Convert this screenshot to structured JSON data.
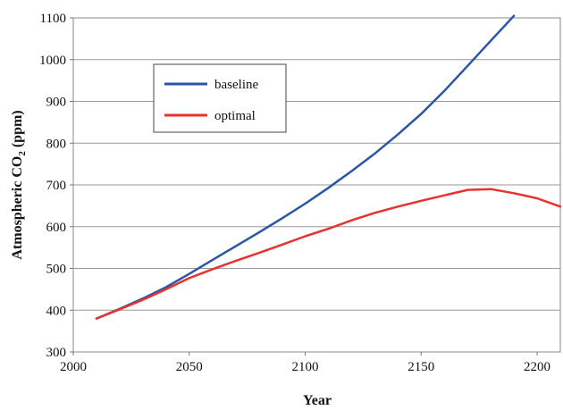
{
  "chart_data": {
    "type": "line",
    "title": "",
    "xlabel": "Year",
    "ylabel_main": "Atmospheric CO",
    "ylabel_sub": "2",
    "ylabel_unit": " (ppm)",
    "xlim": [
      2000,
      2210
    ],
    "ylim": [
      300,
      1100
    ],
    "x_ticks": [
      2000,
      2050,
      2100,
      2150,
      2200
    ],
    "y_ticks": [
      300,
      400,
      500,
      600,
      700,
      800,
      900,
      1000,
      1100
    ],
    "grid": "horizontal",
    "legend_placement": "upper-left",
    "series": [
      {
        "name": "baseline",
        "color": "#2a56a6",
        "x": [
          2010,
          2020,
          2030,
          2040,
          2050,
          2060,
          2070,
          2080,
          2090,
          2100,
          2110,
          2120,
          2130,
          2140,
          2150,
          2160,
          2170,
          2180,
          2190
        ],
        "y": [
          380,
          403,
          428,
          455,
          487,
          520,
          553,
          586,
          620,
          655,
          693,
          733,
          775,
          821,
          870,
          925,
          985,
          1045,
          1105
        ]
      },
      {
        "name": "optimal",
        "color": "#e8322d",
        "x": [
          2010,
          2020,
          2030,
          2040,
          2050,
          2060,
          2070,
          2080,
          2090,
          2100,
          2110,
          2120,
          2130,
          2140,
          2150,
          2160,
          2170,
          2180,
          2190,
          2200,
          2210
        ],
        "y": [
          380,
          402,
          425,
          450,
          477,
          498,
          518,
          537,
          557,
          577,
          595,
          615,
          633,
          648,
          662,
          675,
          688,
          690,
          680,
          668,
          648
        ]
      }
    ]
  }
}
